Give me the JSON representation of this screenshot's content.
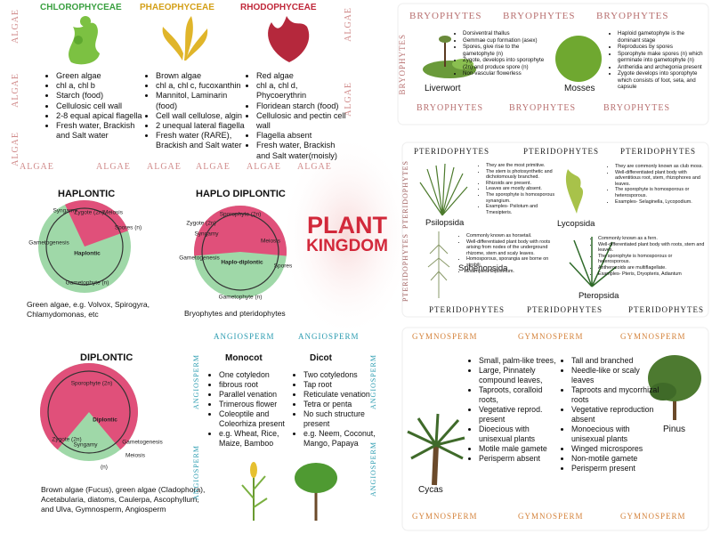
{
  "center": {
    "line1": "PLANT",
    "line2": "KINGDOM"
  },
  "algae": {
    "banners_left": [
      "ALGAE",
      "ALGAE",
      "ALGAE"
    ],
    "banners_right": [
      "ALGAE",
      "ALGAE"
    ],
    "banners_bottom": [
      "ALGAE",
      "ALGAE",
      "ALGAE",
      "ALGAE",
      "ALGAE",
      "ALGAE"
    ],
    "classes": [
      {
        "name": "CHLOROPHYCEAE",
        "traits": [
          "Green algae",
          "chl a, chl b",
          "Starch (food)",
          "Cellulosic cell wall",
          " 2-8 equal apical flagella",
          "Fresh water, Brackish and Salt water"
        ]
      },
      {
        "name": "PHAEOPHYCEAE",
        "traits": [
          "Brown algae",
          "chl a, chl c, fucoxanthin",
          "Mannitol, Laminarin (food)",
          "Cell wall cellulose, algin",
          " 2 unequal lateral flagella",
          "Fresh water (RARE), Brackish and Salt water"
        ]
      },
      {
        "name": "RHODOPHYCEAE",
        "traits": [
          "Red algae",
          "chl a, chl d, Phycoerythrin",
          "Floridean starch (food)",
          "Cellulosic and pectin cell wall",
          "Flagella absent",
          "Fresh water, Brackish and Salt water(moisly)"
        ]
      }
    ]
  },
  "bryophytes": {
    "banners_top": [
      "BRYOPHYTES",
      "BRYOPHYTES",
      "BRYOPHYTES"
    ],
    "banners_bottom": [
      "BRYOPHYTES",
      "BRYOPHYTES",
      "BRYOPHYTES"
    ],
    "banner_side": "BRYOPHYTES",
    "groups": [
      {
        "name": "Liverwort",
        "traits": [
          "Dorsiventral thallus",
          "Gemmae cup formation (asex)",
          "Spores, give rise to the gametophyte (n)",
          "Zygote, develops into sporophyte (2n) and produce spore (n)",
          "Non-vascular flowerless"
        ]
      },
      {
        "name": "Mosses",
        "traits": [
          "Haploid gametophyte is the dominant stage",
          "Reproduces by spores",
          "Sporophyte make spores (n) which germinate into gametophyte (n)",
          "Antheridia and archegonia present",
          "Zygote develops into sporophyte which  consists of foot, seta, and capsule"
        ]
      }
    ]
  },
  "pteridophytes": {
    "banners_top": [
      "PTERIDOPHYTES",
      "PTERIDOPHYTES",
      "PTERIDOPHYTES"
    ],
    "banners_bottom": [
      "PTERIDOPHYTES",
      "PTERIDOPHYTES",
      "PTERIDOPHYTES"
    ],
    "banners_side": [
      "PTERIDOPHYTES",
      "PTERIDOPHYTES"
    ],
    "groups": [
      {
        "name": "Psilopsida",
        "traits": [
          "They are the most primitive.",
          "The stem is photosynthetic and dichotomously branched.",
          "Rhizoids are present.",
          "Leaves are mostly absent.",
          "The sporophyte is homosporous synangium.",
          "Examples- Psilotum and Tmesipteris."
        ]
      },
      {
        "name": "Lycopsida",
        "traits": [
          "They are commonly known as club moss.",
          "Well-differentiated plant body with adventitious root, stem, rhizophores and leaves.",
          "The sporophyte is homosporous or heterosporous.",
          "Examples- Selaginella, Lycopodium."
        ]
      },
      {
        "name": "Sphenopsida",
        "traits": [
          "Commonly known as horsetail.",
          "Well-differentiated plant body with roots arising from nodes of the underground rhizome, stem and scaly leaves.",
          "Homosporous, sporangia are borne on strobili.",
          "Examples- Equisetum."
        ]
      },
      {
        "name": "Pteropsida",
        "traits": [
          "Commonly known as a fern.",
          "Well-differentiated plant body with roots, stem and leaves.",
          "The sporophyte is homosporous or heterosporous.",
          "Antherozoids are multiflagellate.",
          "Examples- Pteris, Dryopteris, Adiantum"
        ]
      }
    ]
  },
  "life_cycles": [
    {
      "title": "HAPLONTIC",
      "labels": [
        "Syngamy",
        "Zygote (2n)",
        "Meiosis",
        "Spores (n)",
        "Gametogenesis",
        "Haplontic",
        "Gametophyte (n)"
      ],
      "caption": "Green algae, e.g. Volvox, Spirogyra, Chlamydomonas, etc"
    },
    {
      "title": "HAPLO DIPLONTIC",
      "labels": [
        "Sporophyte (2n)",
        "Zygote (2n)",
        "Syngamy",
        "Meiosis",
        "Gametogenesis",
        "Haplo-diplontic",
        "Spores",
        "Gametophyte (n)"
      ],
      "caption": "Bryophytes and pteridophytes"
    },
    {
      "title": "DIPLONTIC",
      "labels": [
        "Sporophyte (2n)",
        "Diplontic",
        "Zygote (2n)",
        "Syngamy",
        "Gametogenesis",
        "Meiosis",
        "(n)"
      ],
      "caption": "Brown algae (Fucus), green algae (Cladophora), Acetabularia, diatoms, Caulerpa, Ascophyllum, and Ulva, Gymnosperm, Angiosperm"
    }
  ],
  "angiosperm": {
    "banners_top": [
      "ANGIOSPERM",
      "ANGIOSPERM"
    ],
    "banners_left": [
      "ANGIOSPERM",
      "ANGIOSPERM"
    ],
    "banners_right": [
      "ANGIOSPERM",
      "ANGIOSPERM"
    ],
    "groups": [
      {
        "name": "Monocot",
        "traits": [
          "One cotyledon",
          "fibrous root",
          "Parallel venation",
          "Trimerous flower",
          "Coleoptile and Coleorhiza present",
          "e.g. Wheat, Rice, Maize, Bamboo"
        ]
      },
      {
        "name": "Dicot",
        "traits": [
          "Two cotyledons",
          "Tap root",
          "Reticulate venation",
          "Tetra or penta",
          "No such structure present",
          "e.g. Neem, Coconut, Mango, Papaya"
        ]
      }
    ]
  },
  "gymnosperm": {
    "banners_top": [
      "GYMNOSPERM",
      "GYMNOSPERM",
      "GYMNOSPERM"
    ],
    "banners_bottom": [
      "GYMNOSPERM",
      "GYMNOSPERM",
      "GYMNOSPERM"
    ],
    "groups": [
      {
        "name": "Cycas",
        "traits": [
          "Small, palm-like trees,",
          "Large, Pinnately compound leaves,",
          "Taproots, coralloid roots,",
          "Vegetative reprod. present",
          "Dioecious with unisexual plants",
          "Motile male gamete",
          "Perisperm absent"
        ]
      },
      {
        "name": "Pinus",
        "traits": [
          "Tall and branched",
          "Needle-like or scaly leaves",
          "Taproots and mycorrhizal roots",
          "Vegetative reproduction absent",
          "Monoecious with unisexual plants",
          "Winged microspores",
          "Non-motile gamete",
          "Perisperm present"
        ]
      }
    ]
  }
}
